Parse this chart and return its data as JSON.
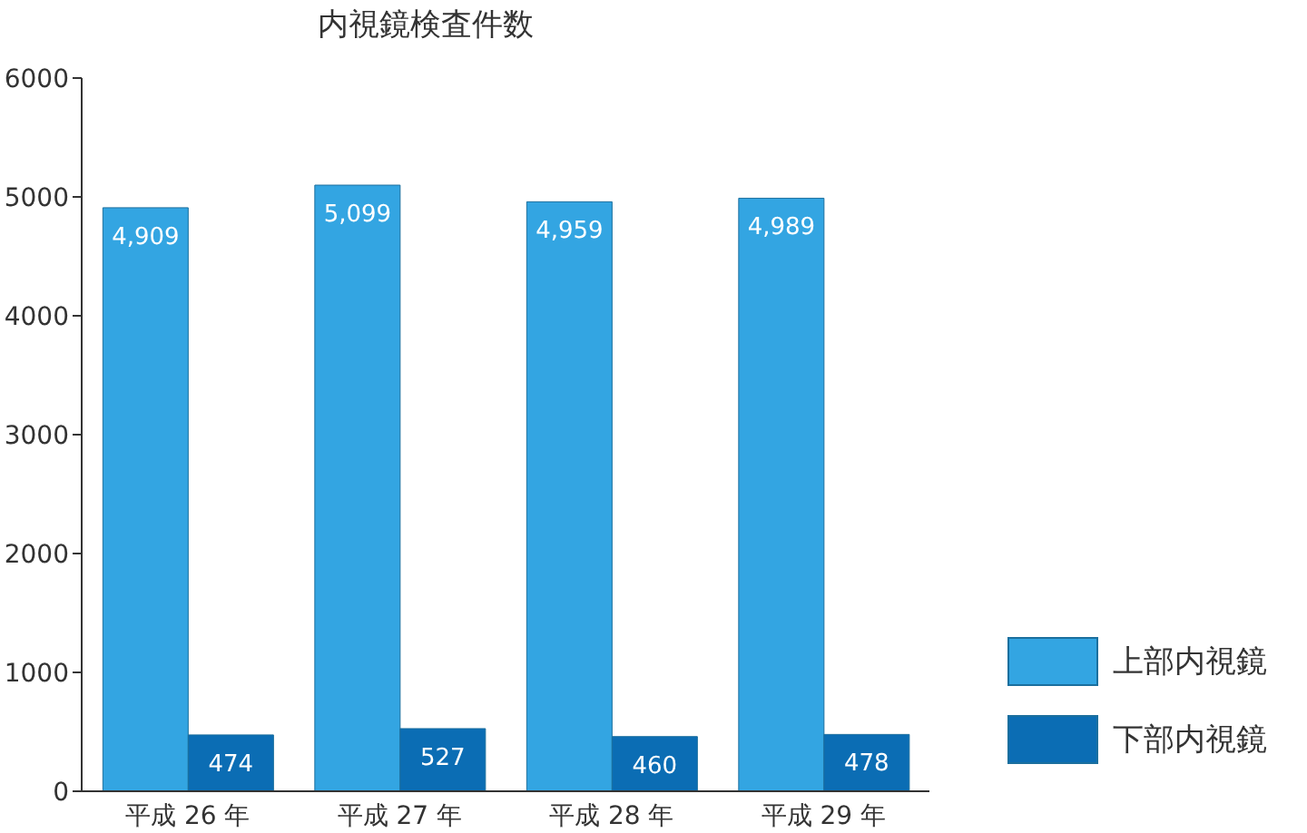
{
  "chart_data": {
    "type": "bar",
    "title": "内視鏡検査件数",
    "categories": [
      "平成 26 年",
      "平成 27 年",
      "平成 28 年",
      "平成 29 年"
    ],
    "series": [
      {
        "name": "上部内視鏡",
        "color": "#33a5e2",
        "values": [
          4909,
          5099,
          4959,
          4989
        ],
        "value_labels": [
          "4,909",
          "5,099",
          "4,959",
          "4,989"
        ]
      },
      {
        "name": "下部内視鏡",
        "color": "#0b6db4",
        "values": [
          474,
          527,
          460,
          478
        ],
        "value_labels": [
          "474",
          "527",
          "460",
          "478"
        ]
      }
    ],
    "ylim": [
      0,
      6000
    ],
    "yticks": [
      0,
      1000,
      2000,
      3000,
      4000,
      5000,
      6000
    ],
    "grid": false,
    "legend": "bottom right"
  }
}
